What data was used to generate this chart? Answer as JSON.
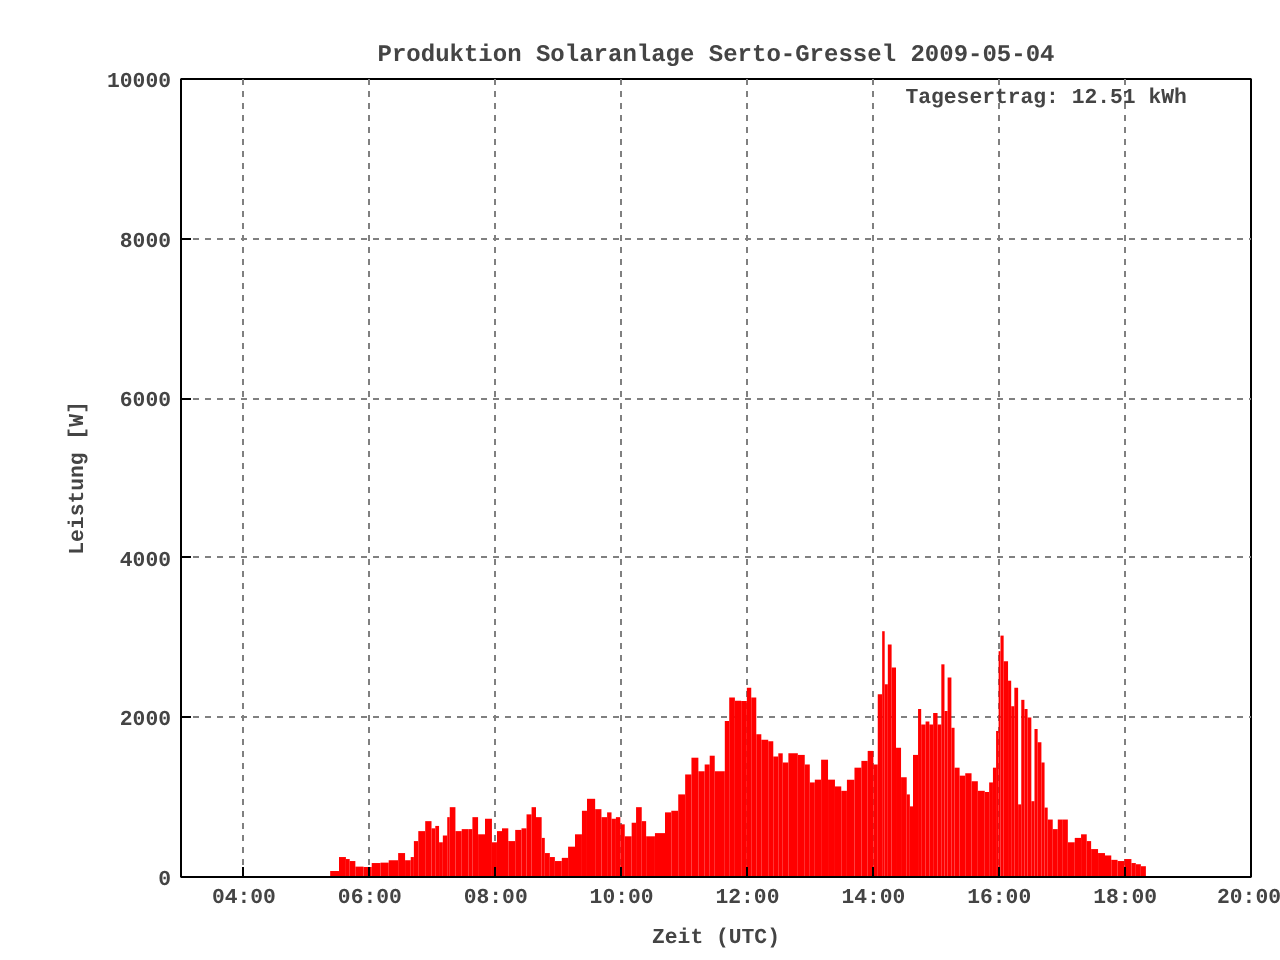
{
  "chart_data": {
    "type": "bar",
    "title": "Produktion Solaranlage Serto-Gressel 2009-05-04",
    "xlabel": "Zeit (UTC)",
    "ylabel": "Leistung [W]",
    "color": "#ff0000",
    "grid": true,
    "annotations": [
      "Tagesertrag: 12.51 kWh"
    ],
    "xlim": [
      3,
      20
    ],
    "ylim": [
      0,
      10000
    ],
    "xticks": [
      {
        "value": 4,
        "label": "04:00"
      },
      {
        "value": 6,
        "label": "06:00"
      },
      {
        "value": 8,
        "label": "08:00"
      },
      {
        "value": 10,
        "label": "10:00"
      },
      {
        "value": 12,
        "label": "12:00"
      },
      {
        "value": 14,
        "label": "14:00"
      },
      {
        "value": 16,
        "label": "16:00"
      },
      {
        "value": 18,
        "label": "18:00"
      },
      {
        "value": 20,
        "label": "20:00"
      }
    ],
    "yticks": [
      0,
      2000,
      4000,
      6000,
      8000,
      10000
    ],
    "x": [
      5.37,
      5.51,
      5.62,
      5.68,
      5.77,
      5.9,
      6.03,
      6.17,
      6.3,
      6.45,
      6.56,
      6.65,
      6.7,
      6.77,
      6.88,
      6.98,
      7.04,
      7.1,
      7.16,
      7.23,
      7.27,
      7.36,
      7.46,
      7.57,
      7.63,
      7.72,
      7.83,
      7.94,
      8.02,
      8.1,
      8.2,
      8.31,
      8.41,
      8.49,
      8.57,
      8.64,
      8.73,
      8.78,
      8.86,
      8.94,
      9.05,
      9.15,
      9.26,
      9.37,
      9.45,
      9.58,
      9.68,
      9.77,
      9.84,
      9.91,
      9.98,
      10.05,
      10.16,
      10.23,
      10.32,
      10.39,
      10.53,
      10.69,
      10.79,
      10.9,
      11.01,
      11.11,
      11.22,
      11.32,
      11.4,
      11.48,
      11.64,
      11.71,
      11.8,
      11.9,
      11.99,
      12.06,
      12.14,
      12.22,
      12.33,
      12.41,
      12.49,
      12.56,
      12.65,
      12.8,
      12.91,
      12.99,
      13.07,
      13.17,
      13.28,
      13.39,
      13.49,
      13.58,
      13.7,
      13.81,
      13.91,
      14.0,
      14.07,
      14.14,
      14.18,
      14.23,
      14.29,
      14.36,
      14.44,
      14.53,
      14.58,
      14.63,
      14.71,
      14.76,
      14.83,
      14.89,
      14.95,
      15.02,
      15.08,
      15.13,
      15.18,
      15.24,
      15.29,
      15.37,
      15.46,
      15.56,
      15.66,
      15.77,
      15.84,
      15.9,
      15.95,
      15.99,
      16.02,
      16.07,
      16.14,
      16.19,
      16.24,
      16.3,
      16.35,
      16.4,
      16.45,
      16.51,
      16.56,
      16.61,
      16.67,
      16.72,
      16.77,
      16.85,
      16.93,
      17.01,
      17.09,
      17.2,
      17.3,
      17.39,
      17.46,
      17.57,
      17.68,
      17.78,
      17.88,
      17.99,
      18.1,
      18.17,
      18.25
    ],
    "values": [
      75,
      250,
      225,
      200,
      130,
      125,
      175,
      180,
      210,
      300,
      210,
      250,
      450,
      575,
      700,
      610,
      640,
      435,
      520,
      750,
      875,
      575,
      600,
      600,
      750,
      535,
      730,
      435,
      575,
      610,
      450,
      590,
      610,
      785,
      875,
      750,
      490,
      300,
      250,
      200,
      240,
      380,
      535,
      830,
      980,
      850,
      750,
      810,
      730,
      750,
      660,
      510,
      680,
      875,
      700,
      510,
      550,
      810,
      830,
      1035,
      1285,
      1495,
      1325,
      1410,
      1520,
      1325,
      1955,
      2250,
      2210,
      2205,
      2370,
      2250,
      1790,
      1720,
      1700,
      1510,
      1550,
      1435,
      1550,
      1530,
      1410,
      1185,
      1220,
      1470,
      1220,
      1135,
      1080,
      1220,
      1370,
      1455,
      1580,
      1410,
      2290,
      3080,
      2415,
      2915,
      2625,
      1620,
      1250,
      1035,
      885,
      1530,
      2105,
      1910,
      1950,
      1910,
      2055,
      1910,
      2665,
      2080,
      2500,
      1870,
      1370,
      1270,
      1300,
      1200,
      1080,
      1065,
      1185,
      1370,
      1830,
      2830,
      3025,
      2705,
      2460,
      2140,
      2370,
      910,
      2220,
      2105,
      2000,
      950,
      1855,
      1690,
      1435,
      870,
      720,
      600,
      720,
      720,
      435,
      490,
      535,
      450,
      350,
      300,
      270,
      215,
      200,
      225,
      175,
      160,
      135
    ]
  }
}
